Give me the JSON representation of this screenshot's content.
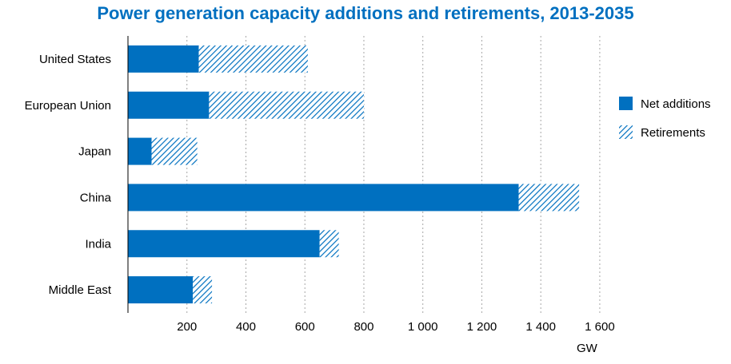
{
  "chart_data": {
    "type": "bar",
    "orientation": "horizontal",
    "stacked": true,
    "title": "Power generation capacity additions and retirements, 2013-2035",
    "xlabel": "GW",
    "ylabel": "",
    "categories": [
      "United States",
      "European Union",
      "Japan",
      "China",
      "India",
      "Middle East"
    ],
    "series": [
      {
        "name": "Net additions",
        "values": [
          240,
          275,
          80,
          1325,
          650,
          220
        ],
        "color": "#0070c0",
        "pattern": "solid"
      },
      {
        "name": "Retirements",
        "values": [
          370,
          525,
          155,
          205,
          65,
          65
        ],
        "color": "#0070c0",
        "pattern": "hatched"
      }
    ],
    "xlim": [
      0,
      1650
    ],
    "xticks": [
      200,
      400,
      600,
      800,
      1000,
      1200,
      1400,
      1600
    ],
    "xtick_labels": [
      "200",
      "400",
      "600",
      "800",
      "1 000",
      "1 200",
      "1 400",
      "1 600"
    ],
    "grid": "vertical dotted",
    "legend_position": "right"
  }
}
